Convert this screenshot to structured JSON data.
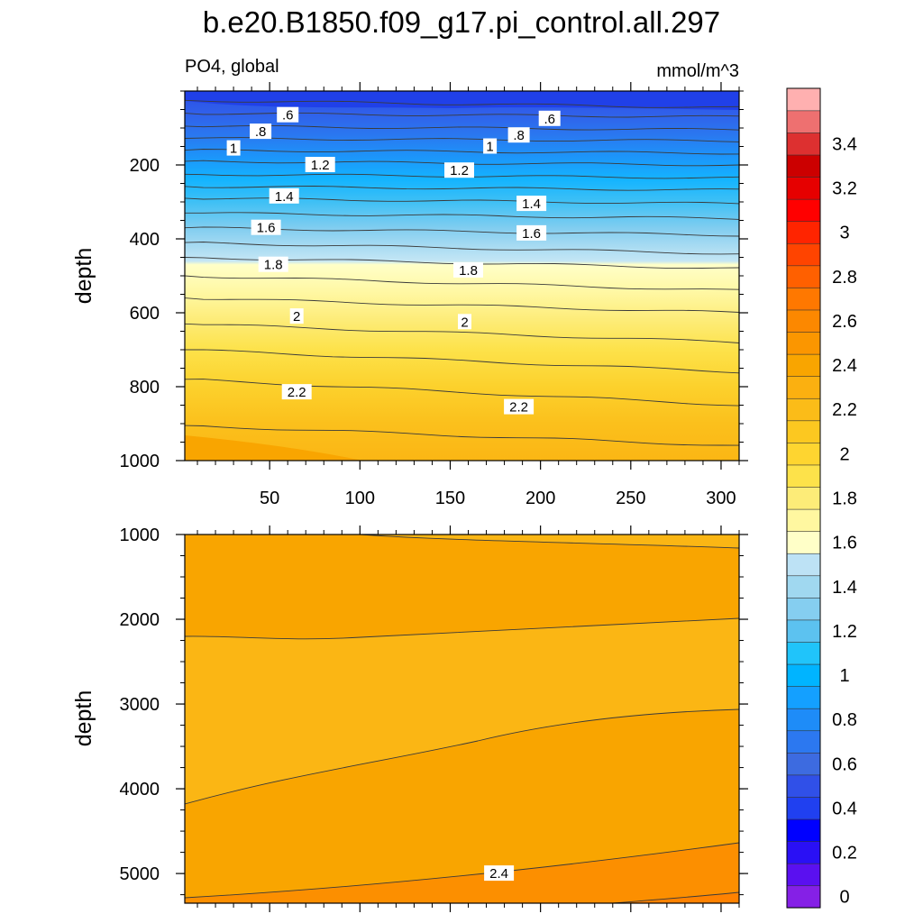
{
  "chart_data": {
    "type": "contour",
    "title": "b.e20.B1850.f09_g17.pi_control.all.297",
    "left_string": "PO4, global",
    "right_string": "mmol/m^3",
    "x_ticks": [
      "50",
      "100",
      "150",
      "200",
      "250",
      "300"
    ],
    "x_range": [
      3,
      310
    ],
    "panels": [
      {
        "name": "upper",
        "ylabel": "depth",
        "y_range": [
          0,
          1000
        ],
        "y_ticks": [
          "200",
          "400",
          "600",
          "800",
          "1000"
        ],
        "y_tick_values": [
          200,
          400,
          600,
          800,
          1000
        ],
        "contour_levels": [
          0.4,
          0.5,
          0.6,
          0.7,
          0.8,
          0.9,
          1.0,
          1.1,
          1.2,
          1.3,
          1.4,
          1.5,
          1.6,
          1.7,
          1.8,
          1.9,
          2.0,
          2.1,
          2.2,
          2.3
        ],
        "contour_labels": [
          {
            "text": ".6",
            "x": 60,
            "y": 65
          },
          {
            "text": ".6",
            "x": 205,
            "y": 75
          },
          {
            "text": ".8",
            "x": 45,
            "y": 110
          },
          {
            "text": ".8",
            "x": 188,
            "y": 120
          },
          {
            "text": "1",
            "x": 30,
            "y": 155
          },
          {
            "text": "1",
            "x": 172,
            "y": 150
          },
          {
            "text": "1.2",
            "x": 78,
            "y": 200
          },
          {
            "text": "1.2",
            "x": 155,
            "y": 215
          },
          {
            "text": "1.4",
            "x": 58,
            "y": 285
          },
          {
            "text": "1.4",
            "x": 195,
            "y": 305
          },
          {
            "text": "1.6",
            "x": 48,
            "y": 370
          },
          {
            "text": "1.6",
            "x": 195,
            "y": 385
          },
          {
            "text": "1.8",
            "x": 52,
            "y": 470
          },
          {
            "text": "1.8",
            "x": 160,
            "y": 485
          },
          {
            "text": "2",
            "x": 65,
            "y": 610
          },
          {
            "text": "2",
            "x": 158,
            "y": 625
          },
          {
            "text": "2.2",
            "x": 65,
            "y": 815
          },
          {
            "text": "2.2",
            "x": 188,
            "y": 855
          }
        ]
      },
      {
        "name": "lower",
        "ylabel": "depth",
        "y_range": [
          1000,
          5350
        ],
        "y_ticks": [
          "1000",
          "2000",
          "3000",
          "4000",
          "5000"
        ],
        "y_tick_values": [
          1000,
          2000,
          3000,
          4000,
          5000
        ],
        "contour_levels": [
          2.2,
          2.3,
          2.4,
          2.5
        ],
        "contour_labels": [
          {
            "text": "2.4",
            "x": 177,
            "y": 5000
          }
        ]
      }
    ],
    "colorbar": {
      "labels": [
        "0",
        "0.2",
        "0.4",
        "0.6",
        "0.8",
        "1",
        "1.2",
        "1.4",
        "1.6",
        "1.8",
        "2",
        "2.2",
        "2.4",
        "2.6",
        "2.8",
        "3",
        "3.2",
        "3.4"
      ],
      "colors": [
        "#8520e6",
        "#5a10f0",
        "#2a10f5",
        "#0000ff",
        "#2040f0",
        "#3050e8",
        "#3d6be0",
        "#2c78f0",
        "#1e8cf8",
        "#14a0ff",
        "#00b4ff",
        "#20c4fa",
        "#5cc2f0",
        "#85cef0",
        "#a0d8f0",
        "#bde2f5",
        "#ffffc8",
        "#fff7a0",
        "#fdec78",
        "#fde24a",
        "#fed530",
        "#fcc820",
        "#fbbc18",
        "#fbb010",
        "#f9a500",
        "#fb9600",
        "#fc8800",
        "#ff7800",
        "#ff6000",
        "#ff4400",
        "#ff2400",
        "#ff0000",
        "#e60000",
        "#cc0000",
        "#dd3030",
        "#ee7070",
        "#ffb0b0"
      ]
    }
  }
}
